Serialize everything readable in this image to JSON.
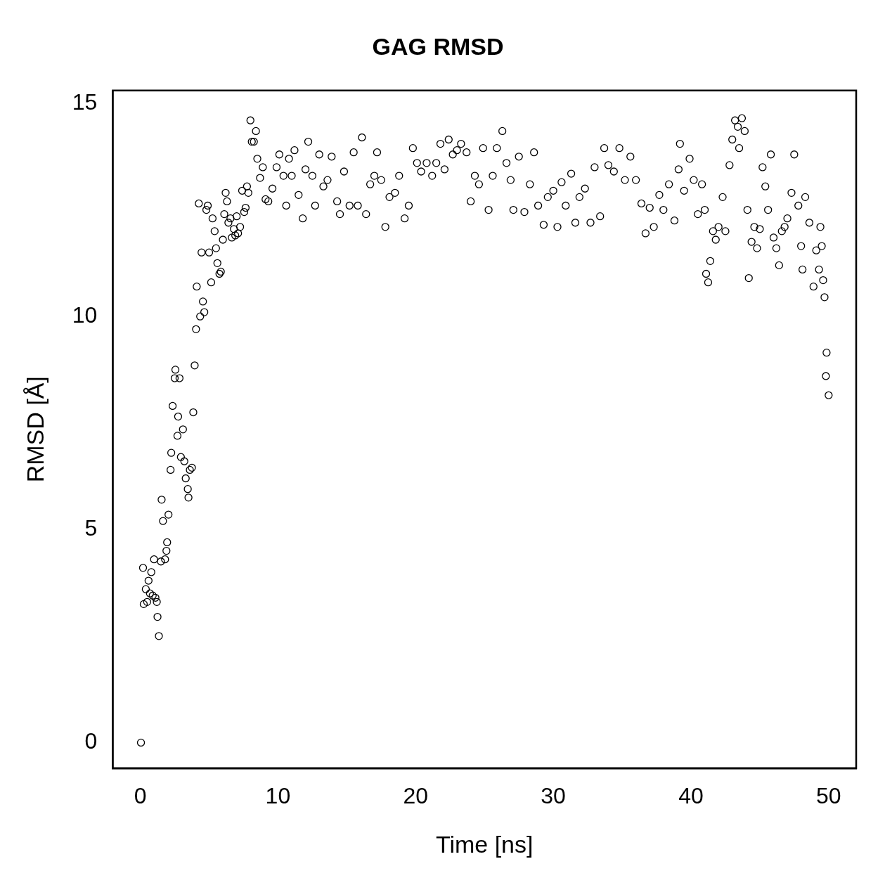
{
  "chart_data": {
    "type": "scatter",
    "title": "GAG RMSD",
    "xlabel": "Time [ns]",
    "ylabel": "RMSD [Å]",
    "xlim": [
      -2,
      52
    ],
    "xticks": [
      0,
      10,
      20,
      30,
      40,
      50
    ],
    "ylim": [
      -0.6,
      15.3
    ],
    "yticks": [
      0,
      5,
      10,
      15
    ],
    "grid": false,
    "marker": "circle",
    "series": [
      {
        "color": "#000000",
        "x": [
          0.05,
          0.2,
          0.25,
          0.4,
          0.5,
          0.6,
          0.7,
          0.8,
          0.9,
          1.0,
          1.1,
          1.2,
          1.25,
          1.35,
          1.5,
          1.55,
          1.65,
          1.8,
          1.9,
          1.95,
          2.05,
          2.2,
          2.25,
          2.35,
          2.5,
          2.55,
          2.7,
          2.75,
          2.85,
          2.95,
          3.1,
          3.2,
          3.3,
          3.45,
          3.5,
          3.6,
          3.75,
          3.85,
          3.95,
          4.05,
          4.1,
          4.25,
          4.35,
          4.45,
          4.55,
          4.65,
          4.8,
          4.9,
          5.0,
          5.15,
          5.25,
          5.4,
          5.5,
          5.6,
          5.75,
          5.85,
          6.0,
          6.1,
          6.2,
          6.3,
          6.4,
          6.55,
          6.65,
          6.8,
          6.9,
          7.0,
          7.1,
          7.25,
          7.4,
          7.55,
          7.65,
          7.75,
          7.85,
          8.0,
          8.1,
          8.25,
          8.4,
          8.5,
          8.7,
          8.9,
          9.1,
          9.3,
          9.6,
          9.9,
          10.1,
          10.4,
          10.6,
          10.8,
          11.0,
          11.2,
          11.5,
          11.8,
          12.0,
          12.2,
          12.5,
          12.7,
          13.0,
          13.3,
          13.6,
          13.9,
          14.3,
          14.5,
          14.8,
          15.2,
          15.5,
          15.8,
          16.1,
          16.4,
          16.7,
          17.0,
          17.2,
          17.5,
          17.8,
          18.1,
          18.5,
          18.8,
          19.2,
          19.5,
          19.8,
          20.1,
          20.4,
          20.8,
          21.2,
          21.5,
          21.8,
          22.1,
          22.4,
          22.7,
          23.0,
          23.3,
          23.7,
          24.0,
          24.3,
          24.6,
          24.9,
          25.3,
          25.6,
          25.9,
          26.3,
          26.6,
          26.9,
          27.1,
          27.5,
          27.9,
          28.3,
          28.6,
          28.9,
          29.3,
          29.6,
          30.0,
          30.3,
          30.6,
          30.9,
          31.3,
          31.6,
          31.9,
          32.3,
          32.7,
          33.0,
          33.4,
          33.7,
          34.0,
          34.4,
          34.8,
          35.2,
          35.6,
          36.0,
          36.4,
          36.7,
          37.0,
          37.3,
          37.7,
          38.0,
          38.4,
          38.8,
          39.1,
          39.2,
          39.5,
          39.9,
          40.2,
          40.5,
          40.8,
          41.0,
          41.1,
          41.25,
          41.4,
          41.6,
          41.8,
          42.0,
          42.3,
          42.5,
          42.8,
          43.0,
          43.2,
          43.4,
          43.5,
          43.7,
          43.9,
          44.1,
          44.2,
          44.4,
          44.6,
          44.8,
          45.0,
          45.2,
          45.4,
          45.6,
          45.8,
          46.0,
          46.2,
          46.4,
          46.6,
          46.8,
          47.0,
          47.3,
          47.5,
          47.8,
          48.0,
          48.1,
          48.3,
          48.6,
          48.9,
          49.1,
          49.3,
          49.4,
          49.5,
          49.6,
          49.7,
          49.8,
          49.85,
          50.0
        ],
        "values": [
          0,
          4.1,
          3.25,
          3.6,
          3.3,
          3.8,
          3.5,
          4.0,
          3.45,
          4.3,
          3.4,
          3.3,
          2.95,
          2.5,
          4.25,
          5.7,
          5.2,
          4.3,
          4.5,
          4.7,
          5.35,
          6.4,
          6.8,
          7.9,
          8.55,
          8.75,
          7.2,
          7.65,
          8.55,
          6.7,
          7.35,
          6.6,
          6.2,
          5.95,
          5.75,
          6.4,
          6.45,
          7.75,
          8.85,
          9.7,
          10.7,
          12.65,
          10.0,
          11.5,
          10.35,
          10.1,
          12.5,
          12.6,
          11.5,
          10.8,
          12.3,
          12.0,
          11.6,
          11.25,
          11.0,
          11.05,
          11.8,
          12.4,
          12.9,
          12.7,
          12.2,
          12.3,
          11.85,
          12.05,
          11.9,
          12.35,
          11.95,
          12.1,
          12.95,
          12.45,
          12.55,
          13.05,
          12.9,
          14.6,
          14.1,
          14.1,
          14.35,
          13.7,
          13.25,
          13.5,
          12.75,
          12.7,
          13.0,
          13.5,
          13.8,
          13.3,
          12.6,
          13.7,
          13.3,
          13.9,
          12.85,
          12.3,
          13.45,
          14.1,
          13.3,
          12.6,
          13.8,
          13.05,
          13.2,
          13.75,
          12.7,
          12.4,
          13.4,
          12.6,
          13.85,
          12.6,
          14.2,
          12.4,
          13.1,
          13.3,
          13.85,
          13.2,
          12.1,
          12.8,
          12.9,
          13.3,
          12.3,
          12.6,
          13.95,
          13.6,
          13.4,
          13.6,
          13.3,
          13.6,
          14.05,
          13.45,
          14.15,
          13.8,
          13.9,
          14.05,
          13.85,
          12.7,
          13.3,
          13.1,
          13.95,
          12.5,
          13.3,
          13.95,
          14.35,
          13.6,
          13.2,
          12.5,
          13.75,
          12.45,
          13.1,
          13.85,
          12.6,
          12.15,
          12.8,
          12.95,
          12.1,
          13.15,
          12.6,
          13.35,
          12.2,
          12.8,
          13.0,
          12.2,
          13.5,
          12.35,
          13.95,
          13.55,
          13.4,
          13.95,
          13.2,
          13.75,
          13.2,
          12.65,
          11.95,
          12.55,
          12.1,
          12.85,
          12.5,
          13.1,
          12.25,
          13.45,
          14.05,
          12.95,
          13.7,
          13.2,
          12.4,
          13.1,
          12.5,
          11.0,
          10.8,
          11.3,
          12.0,
          11.8,
          12.1,
          12.8,
          12.0,
          13.55,
          14.15,
          14.6,
          14.45,
          13.95,
          14.65,
          14.35,
          12.5,
          10.9,
          11.75,
          12.1,
          11.6,
          12.05,
          13.5,
          13.05,
          12.5,
          13.8,
          11.85,
          11.6,
          11.2,
          12.0,
          12.1,
          12.3,
          12.9,
          13.8,
          12.6,
          11.65,
          11.1,
          12.8,
          12.2,
          10.7,
          11.55,
          11.1,
          12.1,
          11.65,
          10.85,
          10.45,
          8.6,
          9.15,
          8.15
        ]
      }
    ]
  }
}
